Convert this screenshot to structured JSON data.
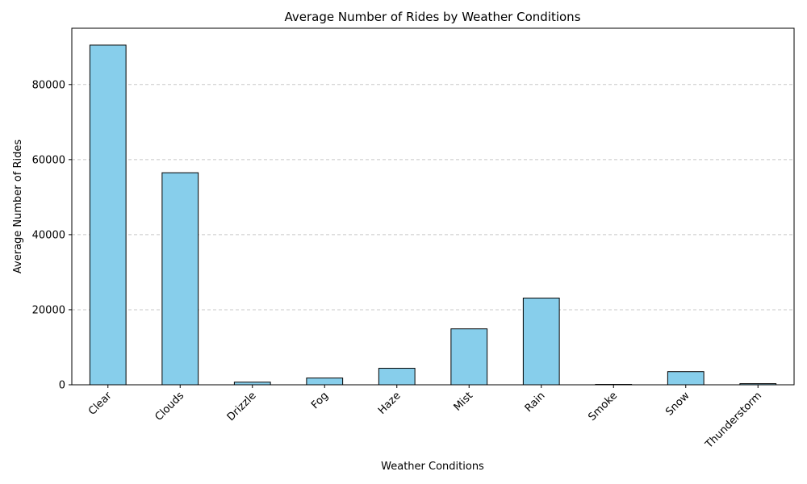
{
  "colors": {
    "bar_fill": "#87CEEB",
    "bar_edge": "#000000",
    "grid": "#c8c8c8"
  },
  "chart_data": {
    "type": "bar",
    "title": "Average Number of Rides by Weather Conditions",
    "xlabel": "Weather Conditions",
    "ylabel": "Average Number of Rides",
    "categories": [
      "Clear",
      "Clouds",
      "Drizzle",
      "Fog",
      "Haze",
      "Mist",
      "Rain",
      "Smoke",
      "Snow",
      "Thunderstorm"
    ],
    "values": [
      90500,
      56500,
      700,
      1800,
      4400,
      14900,
      23100,
      100,
      3500,
      300
    ],
    "ylim": [
      0,
      95000
    ],
    "yticks": [
      0,
      20000,
      40000,
      60000,
      80000
    ],
    "ytick_labels": [
      "0",
      "20000",
      "40000",
      "60000",
      "80000"
    ],
    "xtick_rotation_deg": 45,
    "grid": "y-dashed"
  }
}
